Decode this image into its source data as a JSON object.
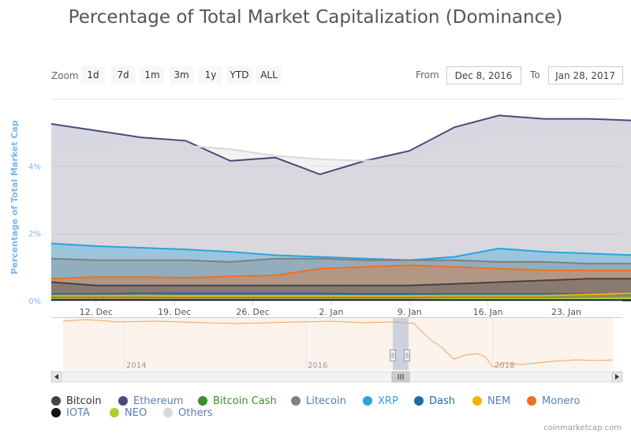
{
  "chart_data": {
    "type": "area",
    "title": "Percentage of Total Market Capitalization (Dominance)",
    "ylabel": "Percentage of Total Market Cap",
    "y_ticks": [
      "0%",
      "2%",
      "4%"
    ],
    "x_ticks": [
      "12. Dec",
      "19. Dec",
      "26. Dec",
      "2. Jan",
      "9. Jan",
      "16. Jan",
      "23. Jan"
    ],
    "x_range": [
      "2016-12-08",
      "2017-01-28"
    ],
    "ylim": [
      0,
      6
    ],
    "grid": true,
    "legend_position": "bottom",
    "x": [
      0,
      4,
      8,
      12,
      16,
      20,
      24,
      28,
      32,
      36,
      40,
      44,
      48,
      52
    ],
    "series": [
      {
        "name": "Bitcoin",
        "color": "#434348",
        "values": [
          0.55,
          0.45,
          0.45,
          0.45,
          0.45,
          0.45,
          0.45,
          0.45,
          0.45,
          0.5,
          0.55,
          0.6,
          0.65,
          0.65
        ]
      },
      {
        "name": "Ethereum",
        "color": "#4a4a78",
        "values": [
          5.25,
          5.05,
          4.85,
          4.75,
          4.15,
          4.25,
          3.75,
          4.15,
          4.45,
          5.15,
          5.5,
          5.4,
          5.4,
          5.35
        ]
      },
      {
        "name": "Bitcoin Cash",
        "color": "#3a8f2c",
        "values": [
          0.02,
          0.02,
          0.02,
          0.02,
          0.02,
          0.02,
          0.02,
          0.02,
          0.02,
          0.02,
          0.02,
          0.02,
          0.02,
          0.02
        ]
      },
      {
        "name": "Litecoin",
        "color": "#808080",
        "values": [
          1.25,
          1.2,
          1.2,
          1.2,
          1.15,
          1.25,
          1.25,
          1.2,
          1.2,
          1.2,
          1.15,
          1.15,
          1.1,
          1.1
        ]
      },
      {
        "name": "XRP",
        "color": "#2ba3db",
        "values": [
          1.7,
          1.62,
          1.57,
          1.52,
          1.45,
          1.35,
          1.3,
          1.25,
          1.2,
          1.3,
          1.55,
          1.45,
          1.4,
          1.35
        ]
      },
      {
        "name": "Dash",
        "color": "#1a6da6",
        "values": [
          0.2,
          0.2,
          0.22,
          0.22,
          0.22,
          0.22,
          0.22,
          0.2,
          0.2,
          0.2,
          0.2,
          0.2,
          0.2,
          0.2
        ]
      },
      {
        "name": "NEM",
        "color": "#f0b400",
        "values": [
          0.15,
          0.15,
          0.15,
          0.14,
          0.14,
          0.14,
          0.14,
          0.14,
          0.14,
          0.15,
          0.15,
          0.15,
          0.18,
          0.22
        ]
      },
      {
        "name": "Monero",
        "color": "#f07020",
        "values": [
          0.65,
          0.7,
          0.7,
          0.68,
          0.72,
          0.75,
          0.95,
          1.0,
          1.05,
          1.0,
          0.95,
          0.9,
          0.9,
          0.9
        ]
      },
      {
        "name": "IOTA",
        "color": "#111111",
        "values": [
          0.01,
          0.01,
          0.01,
          0.01,
          0.01,
          0.01,
          0.01,
          0.01,
          0.01,
          0.01,
          0.01,
          0.01,
          0.01,
          0.01
        ]
      },
      {
        "name": "NEO",
        "color": "#a8d12a",
        "values": [
          0.03,
          0.03,
          0.03,
          0.03,
          0.03,
          0.03,
          0.03,
          0.03,
          0.03,
          0.05,
          0.05,
          0.05,
          0.06,
          0.08
        ]
      },
      {
        "name": "Others",
        "color": "#d9d9d9",
        "values": [
          4.5,
          4.55,
          4.65,
          4.6,
          4.5,
          4.3,
          4.2,
          4.15,
          4.2,
          4.7,
          4.95,
          4.9,
          5.0,
          5.05
        ]
      }
    ]
  },
  "toolbar": {
    "zoom_label": "Zoom",
    "zoom_buttons": [
      "1d",
      "7d",
      "1m",
      "3m",
      "1y",
      "YTD",
      "ALL"
    ],
    "from_label": "From",
    "from_value": "Dec 8, 2016",
    "to_label": "To",
    "to_value": "Jan 28, 2017"
  },
  "navigator": {
    "ticks": [
      "2014",
      "2016",
      "2018"
    ]
  },
  "credit": "coinmarketcap.com"
}
